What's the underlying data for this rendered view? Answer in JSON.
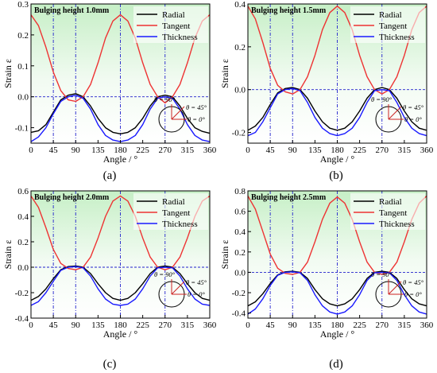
{
  "figure": {
    "legend_names": [
      "Radial",
      "Tangent",
      "Thickness"
    ],
    "colors": {
      "radial": "#000000",
      "tangent": "#ee3333",
      "thickness": "#1a1aff",
      "guide": "#2222cc",
      "bg_top": "#c8f0c8"
    }
  },
  "chart_data": [
    {
      "type": "line",
      "panel_label": "(a)",
      "title": "Bulging height 1.0mm",
      "xlabel": "Angle / °",
      "ylabel": "Strain ε",
      "xlim": [
        0,
        360
      ],
      "ylim": [
        -0.15,
        0.3
      ],
      "xticks": [
        0,
        45,
        90,
        135,
        180,
        225,
        270,
        315,
        360
      ],
      "yticks": [
        -0.1,
        0.0,
        0.1,
        0.2,
        0.3
      ],
      "ytick_labels": [
        "-0.1",
        "0.0",
        "0.1",
        "0.2",
        "0.3"
      ],
      "guides_x": [
        45,
        90,
        180,
        270
      ],
      "guide_y": 0,
      "inset_labels": [
        "θ = 90°",
        "θ = 45°",
        "θ = 0°"
      ],
      "series": [
        {
          "name": "Radial",
          "x": [
            0,
            15,
            30,
            45,
            60,
            75,
            90,
            105,
            120,
            135,
            150,
            165,
            180,
            195,
            210,
            225,
            240,
            255,
            270,
            285,
            300,
            315,
            330,
            345,
            360
          ],
          "values": [
            -0.115,
            -0.11,
            -0.09,
            -0.05,
            -0.01,
            0.005,
            0.01,
            0.0,
            -0.03,
            -0.07,
            -0.1,
            -0.115,
            -0.12,
            -0.115,
            -0.1,
            -0.07,
            -0.03,
            0.0,
            0.005,
            0.0,
            -0.03,
            -0.07,
            -0.1,
            -0.112,
            -0.118
          ]
        },
        {
          "name": "Tangent",
          "x": [
            0,
            15,
            30,
            45,
            60,
            75,
            90,
            105,
            120,
            135,
            150,
            165,
            180,
            195,
            210,
            225,
            240,
            255,
            270,
            285,
            300,
            315,
            330,
            345,
            360
          ],
          "values": [
            0.265,
            0.23,
            0.16,
            0.08,
            0.02,
            -0.01,
            -0.015,
            0.0,
            0.04,
            0.11,
            0.19,
            0.245,
            0.265,
            0.245,
            0.19,
            0.11,
            0.04,
            0.0,
            -0.02,
            0.0,
            0.04,
            0.11,
            0.19,
            0.245,
            0.265
          ]
        },
        {
          "name": "Thickness",
          "x": [
            0,
            15,
            30,
            45,
            60,
            75,
            90,
            105,
            120,
            135,
            150,
            165,
            180,
            195,
            210,
            225,
            240,
            255,
            270,
            285,
            300,
            315,
            330,
            345,
            360
          ],
          "values": [
            -0.145,
            -0.13,
            -0.1,
            -0.055,
            -0.015,
            0.0,
            0.005,
            -0.005,
            -0.04,
            -0.09,
            -0.125,
            -0.14,
            -0.145,
            -0.14,
            -0.125,
            -0.09,
            -0.04,
            -0.005,
            0.0,
            -0.005,
            -0.04,
            -0.09,
            -0.125,
            -0.14,
            -0.145
          ]
        }
      ]
    },
    {
      "type": "line",
      "panel_label": "(b)",
      "title": "Bulging height 1.5mm",
      "xlabel": "Angle / °",
      "ylabel": "Strain ε",
      "xlim": [
        0,
        360
      ],
      "ylim": [
        -0.25,
        0.4
      ],
      "xticks": [
        0,
        45,
        90,
        135,
        180,
        225,
        270,
        315,
        360
      ],
      "yticks": [
        -0.2,
        0.0,
        0.2,
        0.4
      ],
      "ytick_labels": [
        "-0.2",
        "0.0",
        "0.2",
        "0.4"
      ],
      "guides_x": [
        45,
        90,
        180,
        270
      ],
      "guide_y": 0,
      "inset_labels": [
        "θ = 90°",
        "θ = 45°",
        "θ = 0°"
      ],
      "series": [
        {
          "name": "Radial",
          "x": [
            0,
            15,
            30,
            45,
            60,
            75,
            90,
            105,
            120,
            135,
            150,
            165,
            180,
            195,
            210,
            225,
            240,
            255,
            270,
            285,
            300,
            315,
            330,
            345,
            360
          ],
          "values": [
            -0.19,
            -0.17,
            -0.13,
            -0.07,
            -0.015,
            0.005,
            0.01,
            0.0,
            -0.04,
            -0.1,
            -0.15,
            -0.18,
            -0.19,
            -0.18,
            -0.15,
            -0.1,
            -0.04,
            0.0,
            0.01,
            0.0,
            -0.04,
            -0.1,
            -0.15,
            -0.18,
            -0.19
          ]
        },
        {
          "name": "Tangent",
          "x": [
            0,
            15,
            30,
            45,
            60,
            75,
            90,
            105,
            120,
            135,
            150,
            165,
            180,
            195,
            210,
            225,
            240,
            255,
            270,
            285,
            300,
            315,
            330,
            345,
            360
          ],
          "values": [
            0.39,
            0.33,
            0.22,
            0.1,
            0.02,
            -0.01,
            -0.02,
            0.0,
            0.06,
            0.16,
            0.28,
            0.36,
            0.39,
            0.36,
            0.28,
            0.16,
            0.06,
            0.0,
            -0.02,
            0.0,
            0.06,
            0.16,
            0.28,
            0.36,
            0.39
          ]
        },
        {
          "name": "Thickness",
          "x": [
            0,
            15,
            30,
            45,
            60,
            75,
            90,
            105,
            120,
            135,
            150,
            165,
            180,
            195,
            210,
            225,
            240,
            255,
            270,
            285,
            300,
            315,
            330,
            345,
            360
          ],
          "values": [
            -0.215,
            -0.2,
            -0.15,
            -0.085,
            -0.02,
            0.0,
            0.005,
            -0.005,
            -0.06,
            -0.13,
            -0.18,
            -0.205,
            -0.215,
            -0.205,
            -0.18,
            -0.13,
            -0.06,
            -0.005,
            0.0,
            -0.005,
            -0.06,
            -0.13,
            -0.18,
            -0.205,
            -0.215
          ]
        }
      ]
    },
    {
      "type": "line",
      "panel_label": "(c)",
      "title": "Bulging height 2.0mm",
      "xlabel": "Angle / °",
      "ylabel": "Strain ε",
      "xlim": [
        0,
        360
      ],
      "ylim": [
        -0.4,
        0.6
      ],
      "xticks": [
        0,
        45,
        90,
        135,
        180,
        225,
        270,
        315,
        360
      ],
      "yticks": [
        -0.4,
        -0.2,
        0.0,
        0.2,
        0.4,
        0.6
      ],
      "ytick_labels": [
        "-0.4",
        "-0.2",
        "0.0",
        "0.2",
        "0.4",
        "0.6"
      ],
      "guides_x": [
        45,
        90,
        180,
        270
      ],
      "guide_y": 0,
      "inset_labels": [
        "θ = 90°",
        "θ = 45°",
        "θ = 0°"
      ],
      "series": [
        {
          "name": "Radial",
          "x": [
            0,
            15,
            30,
            45,
            60,
            75,
            90,
            105,
            120,
            135,
            150,
            165,
            180,
            195,
            210,
            225,
            240,
            255,
            270,
            285,
            300,
            315,
            330,
            345,
            360
          ],
          "values": [
            -0.26,
            -0.23,
            -0.17,
            -0.09,
            -0.02,
            0.005,
            0.01,
            0.0,
            -0.05,
            -0.13,
            -0.2,
            -0.245,
            -0.26,
            -0.245,
            -0.2,
            -0.13,
            -0.05,
            0.0,
            0.01,
            0.0,
            -0.05,
            -0.13,
            -0.2,
            -0.245,
            -0.26
          ]
        },
        {
          "name": "Tangent",
          "x": [
            0,
            15,
            30,
            45,
            60,
            75,
            90,
            105,
            120,
            135,
            150,
            165,
            180,
            195,
            210,
            225,
            240,
            255,
            270,
            285,
            300,
            315,
            330,
            345,
            360
          ],
          "values": [
            0.56,
            0.47,
            0.31,
            0.14,
            0.03,
            -0.01,
            -0.02,
            0.0,
            0.08,
            0.23,
            0.4,
            0.52,
            0.56,
            0.52,
            0.4,
            0.23,
            0.08,
            0.0,
            -0.02,
            0.0,
            0.08,
            0.23,
            0.4,
            0.52,
            0.56
          ]
        },
        {
          "name": "Thickness",
          "x": [
            0,
            15,
            30,
            45,
            60,
            75,
            90,
            105,
            120,
            135,
            150,
            165,
            180,
            195,
            210,
            225,
            240,
            255,
            270,
            285,
            300,
            315,
            330,
            345,
            360
          ],
          "values": [
            -0.3,
            -0.27,
            -0.2,
            -0.11,
            -0.025,
            0.0,
            0.005,
            -0.005,
            -0.07,
            -0.17,
            -0.25,
            -0.29,
            -0.3,
            -0.29,
            -0.25,
            -0.17,
            -0.07,
            -0.005,
            0.0,
            -0.005,
            -0.07,
            -0.17,
            -0.25,
            -0.29,
            -0.3
          ]
        }
      ]
    },
    {
      "type": "line",
      "panel_label": "(d)",
      "title": "Bulging height 2.5mm",
      "xlabel": "Angle / °",
      "ylabel": "Strain ε",
      "xlim": [
        0,
        360
      ],
      "ylim": [
        -0.45,
        0.8
      ],
      "xticks": [
        0,
        45,
        90,
        135,
        180,
        225,
        270,
        315,
        360
      ],
      "yticks": [
        -0.4,
        -0.2,
        0.0,
        0.2,
        0.4,
        0.6,
        0.8
      ],
      "ytick_labels": [
        "-0.4",
        "-0.2",
        "0.0",
        "0.2",
        "0.4",
        "0.6",
        "0.8"
      ],
      "guides_x": [
        45,
        90,
        180,
        270
      ],
      "guide_y": 0,
      "inset_labels": [
        "θ = 90°",
        "θ = 45°",
        "θ = 0°"
      ],
      "series": [
        {
          "name": "Radial",
          "x": [
            0,
            15,
            30,
            45,
            60,
            75,
            90,
            105,
            120,
            135,
            150,
            165,
            180,
            195,
            210,
            225,
            240,
            255,
            270,
            285,
            300,
            315,
            330,
            345,
            360
          ],
          "values": [
            -0.33,
            -0.29,
            -0.21,
            -0.11,
            -0.025,
            0.005,
            0.01,
            0.0,
            -0.06,
            -0.17,
            -0.26,
            -0.31,
            -0.33,
            -0.31,
            -0.26,
            -0.17,
            -0.06,
            0.0,
            0.01,
            0.0,
            -0.06,
            -0.17,
            -0.26,
            -0.31,
            -0.33
          ]
        },
        {
          "name": "Tangent",
          "x": [
            0,
            15,
            30,
            45,
            60,
            75,
            90,
            105,
            120,
            135,
            150,
            165,
            180,
            195,
            210,
            225,
            240,
            255,
            270,
            285,
            300,
            315,
            330,
            345,
            360
          ],
          "values": [
            0.75,
            0.62,
            0.4,
            0.18,
            0.04,
            -0.01,
            -0.02,
            0.0,
            0.1,
            0.3,
            0.52,
            0.68,
            0.74,
            0.68,
            0.52,
            0.3,
            0.1,
            0.0,
            -0.02,
            0.0,
            0.1,
            0.3,
            0.52,
            0.68,
            0.75
          ]
        },
        {
          "name": "Thickness",
          "x": [
            0,
            15,
            30,
            45,
            60,
            75,
            90,
            105,
            120,
            135,
            150,
            165,
            180,
            195,
            210,
            225,
            240,
            255,
            270,
            285,
            300,
            315,
            330,
            345,
            360
          ],
          "values": [
            -0.41,
            -0.36,
            -0.26,
            -0.13,
            -0.03,
            0.0,
            0.005,
            -0.005,
            -0.08,
            -0.22,
            -0.33,
            -0.39,
            -0.41,
            -0.39,
            -0.33,
            -0.22,
            -0.08,
            -0.005,
            0.0,
            -0.005,
            -0.08,
            -0.22,
            -0.33,
            -0.39,
            -0.41
          ]
        }
      ]
    }
  ]
}
